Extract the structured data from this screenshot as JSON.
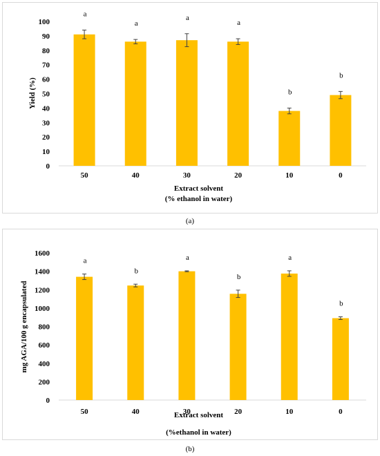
{
  "chart_data": [
    {
      "panel": "(a)",
      "type": "bar",
      "categories": [
        "50",
        "40",
        "30",
        "20",
        "10",
        "0"
      ],
      "values": [
        91,
        86,
        87,
        86,
        38,
        49
      ],
      "errors": [
        3,
        1.5,
        4.5,
        2,
        2,
        2.5
      ],
      "significance": [
        "a",
        "a",
        "a",
        "a",
        "b",
        "b"
      ],
      "ylabel": "Yield (%)",
      "xlabel_line1": "Extract solvent",
      "xlabel_line2": "(% ethanol in water)",
      "ylim": [
        0,
        100
      ],
      "yticks": [
        0,
        10,
        20,
        30,
        40,
        50,
        60,
        70,
        80,
        90,
        100
      ],
      "bar_color": "#FFC000",
      "grid": false,
      "legend": "none"
    },
    {
      "panel": "(b)",
      "type": "bar",
      "categories": [
        "50",
        "40",
        "30",
        "20",
        "10",
        "0"
      ],
      "values": [
        1340,
        1245,
        1400,
        1155,
        1375,
        890
      ],
      "errors": [
        30,
        15,
        5,
        40,
        30,
        15
      ],
      "significance": [
        "a",
        "b",
        "a",
        "b",
        "a",
        "b"
      ],
      "ylabel": "mg AGA/100 g encapsulated",
      "xlabel_line1": "Extract solvent",
      "xlabel_line2": "(%ethanol in water)",
      "ylim": [
        0,
        1600
      ],
      "yticks": [
        0,
        200,
        400,
        600,
        800,
        1000,
        1200,
        1400,
        1600
      ],
      "bar_color": "#FFC000",
      "grid": false,
      "legend": "none"
    }
  ],
  "captions": {
    "a": "(a)",
    "b": "(b)"
  }
}
